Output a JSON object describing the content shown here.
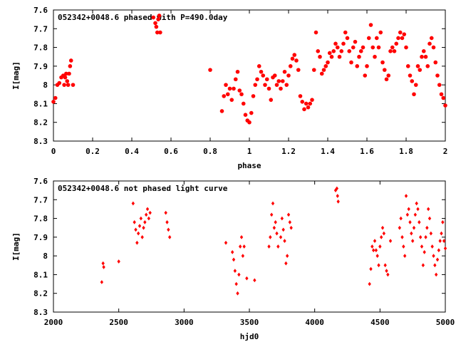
{
  "chart_data": [
    {
      "type": "scatter",
      "title": "052342+0048.6 phased with P=490.0day",
      "xlabel": "phase",
      "ylabel": "I[mag]",
      "xlim": [
        0,
        2
      ],
      "ylim": [
        8.3,
        7.6
      ],
      "y_inverted": true,
      "grid": false,
      "xticks": [
        "0",
        "0.2",
        "0.4",
        "0.6",
        "0.8",
        "1",
        "1.2",
        "1.4",
        "1.6",
        "1.8",
        "2"
      ],
      "yticks": [
        "7.6",
        "7.7",
        "7.8",
        "7.9",
        "8",
        "8.1",
        "8.2",
        "8.3"
      ],
      "color": "#ff0000",
      "points": [
        [
          0.0,
          8.09
        ],
        [
          0.01,
          8.07
        ],
        [
          0.02,
          8.0
        ],
        [
          0.03,
          7.99
        ],
        [
          0.04,
          7.96
        ],
        [
          0.05,
          7.95
        ],
        [
          0.055,
          8.0
        ],
        [
          0.06,
          7.96
        ],
        [
          0.065,
          7.94
        ],
        [
          0.07,
          7.98
        ],
        [
          0.075,
          8.0
        ],
        [
          0.08,
          7.94
        ],
        [
          0.085,
          7.9
        ],
        [
          0.09,
          7.87
        ],
        [
          0.1,
          8.0
        ],
        [
          0.51,
          7.64
        ],
        [
          0.52,
          7.67
        ],
        [
          0.525,
          7.69
        ],
        [
          0.53,
          7.72
        ],
        [
          0.535,
          7.65
        ],
        [
          0.54,
          7.63
        ],
        [
          0.545,
          7.72
        ],
        [
          0.8,
          7.92
        ],
        [
          0.86,
          8.14
        ],
        [
          0.87,
          8.06
        ],
        [
          0.88,
          8.0
        ],
        [
          0.89,
          8.05
        ],
        [
          0.9,
          8.02
        ],
        [
          0.91,
          8.08
        ],
        [
          0.92,
          8.02
        ],
        [
          0.93,
          7.97
        ],
        [
          0.94,
          7.93
        ],
        [
          0.95,
          8.03
        ],
        [
          0.96,
          8.05
        ],
        [
          0.97,
          8.1
        ],
        [
          0.98,
          8.16
        ],
        [
          0.99,
          8.19
        ],
        [
          1.0,
          8.2
        ],
        [
          1.01,
          8.15
        ],
        [
          1.02,
          8.06
        ],
        [
          1.03,
          8.0
        ],
        [
          1.04,
          7.97
        ],
        [
          1.05,
          7.9
        ],
        [
          1.06,
          7.93
        ],
        [
          1.07,
          7.95
        ],
        [
          1.08,
          8.0
        ],
        [
          1.09,
          7.97
        ],
        [
          1.1,
          8.02
        ],
        [
          1.11,
          8.08
        ],
        [
          1.12,
          7.96
        ],
        [
          1.13,
          7.95
        ],
        [
          1.14,
          8.0
        ],
        [
          1.15,
          7.98
        ],
        [
          1.16,
          8.02
        ],
        [
          1.17,
          7.98
        ],
        [
          1.18,
          7.93
        ],
        [
          1.19,
          8.0
        ],
        [
          1.2,
          7.95
        ],
        [
          1.21,
          7.9
        ],
        [
          1.22,
          7.86
        ],
        [
          1.23,
          7.84
        ],
        [
          1.24,
          7.87
        ],
        [
          1.25,
          7.92
        ],
        [
          1.26,
          8.06
        ],
        [
          1.27,
          8.09
        ],
        [
          1.28,
          8.13
        ],
        [
          1.29,
          8.1
        ],
        [
          1.3,
          8.12
        ],
        [
          1.31,
          8.1
        ],
        [
          1.32,
          8.08
        ],
        [
          1.33,
          7.92
        ],
        [
          1.34,
          7.72
        ],
        [
          1.35,
          7.82
        ],
        [
          1.36,
          7.85
        ],
        [
          1.37,
          7.94
        ],
        [
          1.38,
          7.92
        ],
        [
          1.39,
          7.9
        ],
        [
          1.4,
          7.88
        ],
        [
          1.41,
          7.83
        ],
        [
          1.42,
          7.85
        ],
        [
          1.43,
          7.82
        ],
        [
          1.44,
          7.78
        ],
        [
          1.45,
          7.8
        ],
        [
          1.46,
          7.85
        ],
        [
          1.47,
          7.82
        ],
        [
          1.48,
          7.78
        ],
        [
          1.49,
          7.72
        ],
        [
          1.5,
          7.75
        ],
        [
          1.51,
          7.82
        ],
        [
          1.52,
          7.88
        ],
        [
          1.53,
          7.8
        ],
        [
          1.54,
          7.77
        ],
        [
          1.55,
          7.9
        ],
        [
          1.56,
          7.85
        ],
        [
          1.57,
          7.82
        ],
        [
          1.58,
          7.8
        ],
        [
          1.59,
          7.95
        ],
        [
          1.6,
          7.9
        ],
        [
          1.61,
          7.75
        ],
        [
          1.62,
          7.68
        ],
        [
          1.63,
          7.8
        ],
        [
          1.64,
          7.85
        ],
        [
          1.65,
          7.75
        ],
        [
          1.66,
          7.8
        ],
        [
          1.67,
          7.72
        ],
        [
          1.68,
          7.88
        ],
        [
          1.69,
          7.92
        ],
        [
          1.7,
          7.97
        ],
        [
          1.71,
          7.95
        ],
        [
          1.72,
          7.82
        ],
        [
          1.73,
          7.8
        ],
        [
          1.74,
          7.82
        ],
        [
          1.75,
          7.78
        ],
        [
          1.76,
          7.75
        ],
        [
          1.77,
          7.72
        ],
        [
          1.78,
          7.75
        ],
        [
          1.79,
          7.73
        ],
        [
          1.8,
          7.8
        ],
        [
          1.81,
          7.9
        ],
        [
          1.82,
          7.95
        ],
        [
          1.83,
          7.98
        ],
        [
          1.84,
          8.05
        ],
        [
          1.85,
          8.0
        ],
        [
          1.86,
          7.9
        ],
        [
          1.87,
          7.92
        ],
        [
          1.88,
          7.85
        ],
        [
          1.89,
          7.82
        ],
        [
          1.9,
          7.85
        ],
        [
          1.91,
          7.9
        ],
        [
          1.92,
          7.78
        ],
        [
          1.93,
          7.75
        ],
        [
          1.94,
          7.8
        ],
        [
          1.95,
          7.88
        ],
        [
          1.96,
          7.95
        ],
        [
          1.97,
          8.0
        ],
        [
          1.98,
          8.05
        ],
        [
          1.99,
          8.07
        ],
        [
          2.0,
          8.11
        ]
      ]
    },
    {
      "type": "scatter",
      "title": "052342+0048.6 not phased light curve",
      "xlabel": "hjd0",
      "ylabel": "I[mag]",
      "xlim": [
        2000,
        5000
      ],
      "ylim": [
        8.3,
        7.6
      ],
      "y_inverted": true,
      "grid": false,
      "xticks": [
        "2000",
        "2500",
        "3000",
        "3500",
        "4000",
        "4500",
        "5000"
      ],
      "yticks": [
        "7.6",
        "7.7",
        "7.8",
        "7.9",
        "8",
        "8.1",
        "8.2",
        "8.3"
      ],
      "color": "#ff0000",
      "points": [
        [
          2370,
          8.14
        ],
        [
          2380,
          8.04
        ],
        [
          2385,
          8.06
        ],
        [
          2500,
          8.03
        ],
        [
          2610,
          7.72
        ],
        [
          2620,
          7.82
        ],
        [
          2630,
          7.86
        ],
        [
          2640,
          7.93
        ],
        [
          2650,
          7.88
        ],
        [
          2660,
          7.84
        ],
        [
          2670,
          7.8
        ],
        [
          2680,
          7.9
        ],
        [
          2690,
          7.85
        ],
        [
          2700,
          7.82
        ],
        [
          2710,
          7.78
        ],
        [
          2720,
          7.75
        ],
        [
          2730,
          7.8
        ],
        [
          2740,
          7.77
        ],
        [
          2860,
          7.77
        ],
        [
          2870,
          7.82
        ],
        [
          2880,
          7.86
        ],
        [
          2890,
          7.9
        ],
        [
          3320,
          7.93
        ],
        [
          3370,
          7.98
        ],
        [
          3380,
          8.02
        ],
        [
          3390,
          8.08
        ],
        [
          3400,
          8.15
        ],
        [
          3410,
          8.2
        ],
        [
          3420,
          8.1
        ],
        [
          3430,
          7.95
        ],
        [
          3440,
          7.9
        ],
        [
          3450,
          8.0
        ],
        [
          3460,
          7.95
        ],
        [
          3480,
          8.12
        ],
        [
          3540,
          8.13
        ],
        [
          3650,
          7.95
        ],
        [
          3660,
          7.9
        ],
        [
          3670,
          7.78
        ],
        [
          3680,
          7.72
        ],
        [
          3690,
          7.85
        ],
        [
          3700,
          7.82
        ],
        [
          3710,
          7.88
        ],
        [
          3720,
          7.95
        ],
        [
          3740,
          7.9
        ],
        [
          3750,
          7.8
        ],
        [
          3760,
          7.86
        ],
        [
          3770,
          7.92
        ],
        [
          3780,
          8.04
        ],
        [
          3790,
          8.0
        ],
        [
          3800,
          7.78
        ],
        [
          3810,
          7.82
        ],
        [
          3820,
          7.85
        ],
        [
          4160,
          7.65
        ],
        [
          4170,
          7.64
        ],
        [
          4175,
          7.68
        ],
        [
          4180,
          7.71
        ],
        [
          4420,
          8.15
        ],
        [
          4430,
          8.07
        ],
        [
          4440,
          7.95
        ],
        [
          4450,
          7.97
        ],
        [
          4460,
          7.92
        ],
        [
          4470,
          7.97
        ],
        [
          4480,
          8.0
        ],
        [
          4490,
          8.05
        ],
        [
          4500,
          7.95
        ],
        [
          4510,
          7.9
        ],
        [
          4520,
          7.85
        ],
        [
          4530,
          7.88
        ],
        [
          4540,
          8.05
        ],
        [
          4550,
          8.08
        ],
        [
          4560,
          8.1
        ],
        [
          4580,
          7.92
        ],
        [
          4650,
          7.85
        ],
        [
          4660,
          7.8
        ],
        [
          4670,
          7.9
        ],
        [
          4680,
          7.95
        ],
        [
          4690,
          8.0
        ],
        [
          4700,
          7.68
        ],
        [
          4710,
          7.78
        ],
        [
          4720,
          7.75
        ],
        [
          4730,
          7.82
        ],
        [
          4740,
          7.88
        ],
        [
          4750,
          7.92
        ],
        [
          4760,
          7.85
        ],
        [
          4770,
          7.78
        ],
        [
          4780,
          7.72
        ],
        [
          4790,
          7.75
        ],
        [
          4800,
          7.82
        ],
        [
          4810,
          7.9
        ],
        [
          4820,
          7.95
        ],
        [
          4830,
          8.05
        ],
        [
          4840,
          7.98
        ],
        [
          4850,
          7.9
        ],
        [
          4860,
          7.85
        ],
        [
          4870,
          7.75
        ],
        [
          4880,
          7.8
        ],
        [
          4890,
          7.88
        ],
        [
          4900,
          7.95
        ],
        [
          4910,
          8.0
        ],
        [
          4920,
          8.05
        ],
        [
          4930,
          8.1
        ],
        [
          4940,
          8.02
        ],
        [
          4950,
          7.97
        ],
        [
          4960,
          7.92
        ],
        [
          4970,
          7.88
        ],
        [
          4980,
          7.82
        ],
        [
          4990,
          7.92
        ],
        [
          5000,
          7.96
        ]
      ]
    }
  ]
}
